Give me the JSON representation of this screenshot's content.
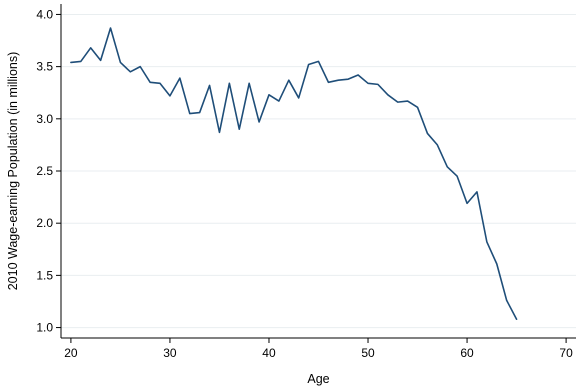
{
  "chart_data": {
    "type": "line",
    "title": "",
    "xlabel": "Age",
    "ylabel": "2010 Wage-earning Population (in millions)",
    "xlim": [
      19,
      71
    ],
    "ylim": [
      0.9,
      4.1
    ],
    "x_ticks": [
      20,
      30,
      40,
      50,
      60,
      70
    ],
    "y_ticks": [
      1.0,
      1.5,
      2.0,
      2.5,
      3.0,
      3.5,
      4.0
    ],
    "y_tick_labels": [
      "1.0",
      "1.5",
      "2.0",
      "2.5",
      "3.0",
      "3.5",
      "4.0"
    ],
    "grid": "horizontal",
    "legend": "none",
    "series": [
      {
        "color": "#1f4e79",
        "x": [
          20,
          21,
          22,
          23,
          24,
          25,
          26,
          27,
          28,
          29,
          30,
          31,
          32,
          33,
          34,
          35,
          36,
          37,
          38,
          39,
          40,
          41,
          42,
          43,
          44,
          45,
          46,
          47,
          48,
          49,
          50,
          51,
          52,
          53,
          54,
          55,
          56,
          57,
          58,
          59,
          60,
          61,
          62,
          63,
          64,
          65
        ],
        "y": [
          3.54,
          3.55,
          3.68,
          3.56,
          3.87,
          3.54,
          3.45,
          3.5,
          3.35,
          3.34,
          3.22,
          3.39,
          3.05,
          3.06,
          3.32,
          2.87,
          3.34,
          2.9,
          3.34,
          2.97,
          3.23,
          3.17,
          3.37,
          3.2,
          3.52,
          3.55,
          3.35,
          3.37,
          3.38,
          3.42,
          3.34,
          3.33,
          3.23,
          3.16,
          3.17,
          3.11,
          2.86,
          2.75,
          2.54,
          2.45,
          2.19,
          2.3,
          1.82,
          1.61,
          1.26,
          1.08
        ]
      }
    ]
  }
}
